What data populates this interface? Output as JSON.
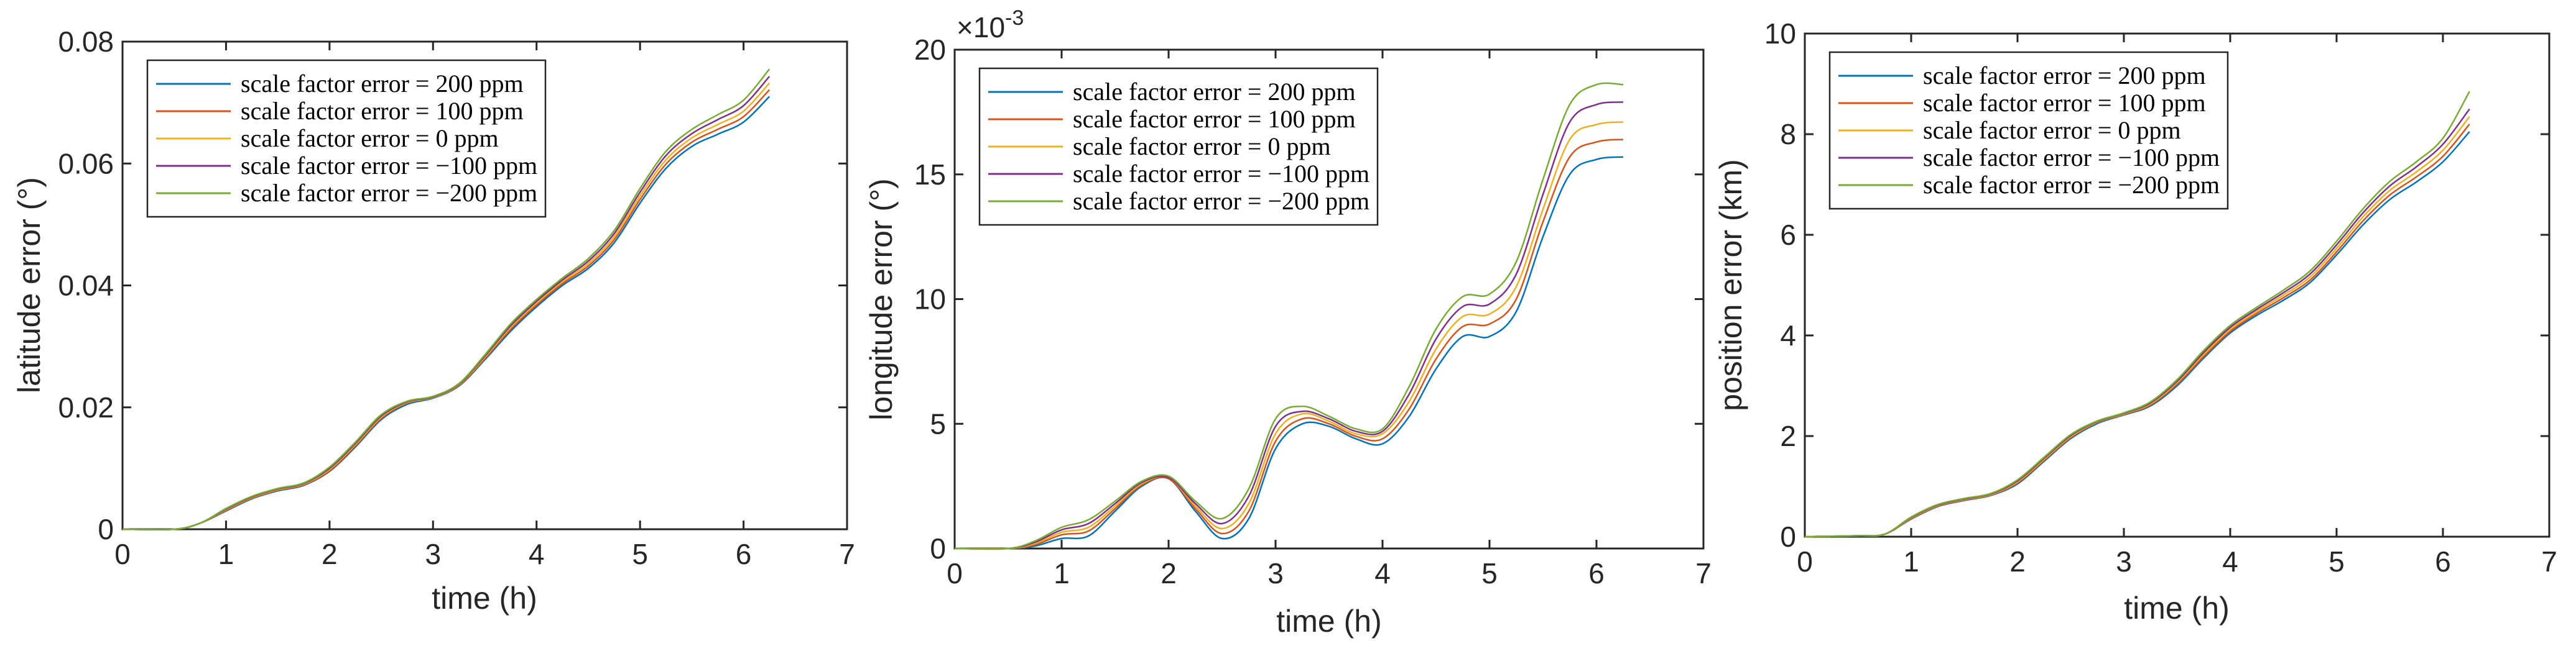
{
  "chart_data": [
    {
      "type": "line",
      "xlabel": "time (h)",
      "ylabel": "latitude error (°)",
      "xlim": [
        0,
        7
      ],
      "ylim": [
        0,
        0.08
      ],
      "xticks": [
        0,
        1,
        2,
        3,
        4,
        5,
        6,
        7
      ],
      "xtick_labels": [
        "0",
        "1",
        "2",
        "3",
        "4",
        "5",
        "6",
        "7"
      ],
      "yticks": [
        0,
        0.02,
        0.04,
        0.06,
        0.08
      ],
      "ytick_labels": [
        "0",
        "0.02",
        "0.04",
        "0.06",
        "0.08"
      ],
      "exponent_label": "",
      "legend_position": "top-left",
      "x": [
        0,
        0.5,
        0.75,
        1.0,
        1.25,
        1.5,
        1.75,
        2.0,
        2.25,
        2.5,
        2.75,
        3.0,
        3.25,
        3.5,
        3.75,
        4.0,
        4.25,
        4.5,
        4.75,
        5.0,
        5.25,
        5.5,
        5.75,
        6.0,
        6.25
      ],
      "series": [
        {
          "name": "scale factor error = 200 ppm",
          "color": "#0072BD",
          "values": [
            0,
            0,
            0.001,
            0.003,
            0.005,
            0.0063,
            0.0072,
            0.0095,
            0.0135,
            0.018,
            0.0205,
            0.0215,
            0.0235,
            0.0278,
            0.0325,
            0.0365,
            0.04,
            0.0428,
            0.047,
            0.0535,
            0.0592,
            0.0628,
            0.0648,
            0.0668,
            0.071
          ]
        },
        {
          "name": "scale factor error = 100 ppm",
          "color": "#D95319",
          "values": [
            0,
            0,
            0.001,
            0.0031,
            0.0051,
            0.0064,
            0.0073,
            0.0096,
            0.0137,
            0.0182,
            0.0207,
            0.0216,
            0.0236,
            0.028,
            0.0328,
            0.0368,
            0.0403,
            0.0432,
            0.0475,
            0.0541,
            0.0599,
            0.0635,
            0.0656,
            0.0677,
            0.0721
          ]
        },
        {
          "name": "scale factor error = 0 ppm",
          "color": "#EDB120",
          "values": [
            0,
            0,
            0.001,
            0.0032,
            0.0052,
            0.0065,
            0.0074,
            0.0098,
            0.0139,
            0.0184,
            0.0208,
            0.0216,
            0.0237,
            0.0282,
            0.0331,
            0.0371,
            0.0406,
            0.0436,
            0.048,
            0.0547,
            0.0606,
            0.0642,
            0.0664,
            0.0686,
            0.0732
          ]
        },
        {
          "name": "scale factor error = −100 ppm",
          "color": "#7E2F8E",
          "values": [
            0,
            0,
            0.001,
            0.0033,
            0.0053,
            0.0066,
            0.0075,
            0.01,
            0.0141,
            0.0186,
            0.0209,
            0.0217,
            0.0238,
            0.0284,
            0.0334,
            0.0374,
            0.0409,
            0.044,
            0.0485,
            0.0553,
            0.0613,
            0.0649,
            0.0672,
            0.0695,
            0.0743
          ]
        },
        {
          "name": "scale factor error = −200 ppm",
          "color": "#77AC30",
          "values": [
            0,
            0,
            0.001,
            0.0034,
            0.0054,
            0.0067,
            0.0076,
            0.0102,
            0.0143,
            0.0188,
            0.021,
            0.0218,
            0.0239,
            0.0286,
            0.0337,
            0.0377,
            0.0412,
            0.0444,
            0.049,
            0.0559,
            0.062,
            0.0656,
            0.068,
            0.0704,
            0.0755
          ]
        }
      ]
    },
    {
      "type": "line",
      "xlabel": "time (h)",
      "ylabel": "longitude error (°)",
      "xlim": [
        0,
        7
      ],
      "ylim": [
        0,
        20
      ],
      "xticks": [
        0,
        1,
        2,
        3,
        4,
        5,
        6,
        7
      ],
      "xtick_labels": [
        "0",
        "1",
        "2",
        "3",
        "4",
        "5",
        "6",
        "7"
      ],
      "yticks": [
        0,
        5,
        10,
        15,
        20
      ],
      "ytick_labels": [
        "0",
        "5",
        "10",
        "15",
        "20"
      ],
      "exponent_label": "×10",
      "exponent_power": "-3",
      "legend_position": "top-left",
      "x": [
        0,
        0.5,
        0.75,
        1.0,
        1.25,
        1.5,
        1.75,
        2.0,
        2.25,
        2.5,
        2.75,
        3.0,
        3.25,
        3.5,
        3.75,
        4.0,
        4.25,
        4.5,
        4.75,
        5.0,
        5.25,
        5.5,
        5.75,
        6.0,
        6.25
      ],
      "series": [
        {
          "name": "scale factor error = 200 ppm",
          "color": "#0072BD",
          "values": [
            0,
            0,
            0.1,
            0.4,
            0.5,
            1.5,
            2.5,
            2.8,
            1.5,
            0.4,
            1.2,
            4.0,
            5.0,
            4.9,
            4.4,
            4.2,
            5.3,
            7.2,
            8.5,
            8.5,
            9.5,
            12.5,
            15.0,
            15.6,
            15.7
          ]
        },
        {
          "name": "scale factor error = 100 ppm",
          "color": "#D95319",
          "values": [
            0,
            0,
            0.15,
            0.55,
            0.7,
            1.6,
            2.55,
            2.8,
            1.6,
            0.6,
            1.5,
            4.3,
            5.2,
            5.0,
            4.5,
            4.4,
            5.6,
            7.6,
            8.9,
            9.0,
            10.0,
            13.1,
            15.7,
            16.3,
            16.4
          ]
        },
        {
          "name": "scale factor error = 0 ppm",
          "color": "#EDB120",
          "values": [
            0,
            0,
            0.2,
            0.65,
            0.85,
            1.7,
            2.6,
            2.85,
            1.7,
            0.8,
            1.8,
            4.6,
            5.4,
            5.1,
            4.6,
            4.6,
            5.9,
            8.0,
            9.3,
            9.4,
            10.5,
            13.6,
            16.4,
            17.0,
            17.1
          ]
        },
        {
          "name": "scale factor error = −100 ppm",
          "color": "#7E2F8E",
          "values": [
            0,
            0,
            0.25,
            0.75,
            1.0,
            1.8,
            2.65,
            2.85,
            1.8,
            1.0,
            2.1,
            4.9,
            5.5,
            5.2,
            4.7,
            4.7,
            6.2,
            8.4,
            9.7,
            9.8,
            11.0,
            14.2,
            17.1,
            17.8,
            17.9
          ]
        },
        {
          "name": "scale factor error = −200 ppm",
          "color": "#77AC30",
          "values": [
            0,
            0,
            0.3,
            0.85,
            1.15,
            1.9,
            2.7,
            2.9,
            1.9,
            1.2,
            2.4,
            5.2,
            5.7,
            5.3,
            4.8,
            4.8,
            6.5,
            8.8,
            10.1,
            10.2,
            11.5,
            14.8,
            17.8,
            18.6,
            18.6
          ]
        }
      ]
    },
    {
      "type": "line",
      "xlabel": "time (h)",
      "ylabel": "position error (km)",
      "xlim": [
        0,
        7
      ],
      "ylim": [
        0,
        10
      ],
      "xticks": [
        0,
        1,
        2,
        3,
        4,
        5,
        6,
        7
      ],
      "xtick_labels": [
        "0",
        "1",
        "2",
        "3",
        "4",
        "5",
        "6",
        "7"
      ],
      "yticks": [
        0,
        2,
        4,
        6,
        8,
        10
      ],
      "ytick_labels": [
        "0",
        "2",
        "4",
        "6",
        "8",
        "10"
      ],
      "exponent_label": "",
      "legend_position": "top-left",
      "x": [
        0,
        0.5,
        0.75,
        1.0,
        1.25,
        1.5,
        1.75,
        2.0,
        2.25,
        2.5,
        2.75,
        3.0,
        3.25,
        3.5,
        3.75,
        4.0,
        4.25,
        4.5,
        4.75,
        5.0,
        5.25,
        5.5,
        5.75,
        6.0,
        6.25
      ],
      "series": [
        {
          "name": "scale factor error = 200 ppm",
          "color": "#0072BD",
          "values": [
            0,
            0.02,
            0.05,
            0.35,
            0.6,
            0.72,
            0.82,
            1.05,
            1.5,
            1.95,
            2.25,
            2.42,
            2.6,
            3.0,
            3.55,
            4.05,
            4.4,
            4.7,
            5.05,
            5.6,
            6.2,
            6.7,
            7.05,
            7.45,
            8.05
          ]
        },
        {
          "name": "scale factor error = 100 ppm",
          "color": "#D95319",
          "values": [
            0,
            0.02,
            0.05,
            0.36,
            0.61,
            0.73,
            0.83,
            1.07,
            1.52,
            1.97,
            2.27,
            2.43,
            2.62,
            3.03,
            3.58,
            4.08,
            4.44,
            4.75,
            5.1,
            5.66,
            6.28,
            6.79,
            7.15,
            7.56,
            8.2
          ]
        },
        {
          "name": "scale factor error = 0 ppm",
          "color": "#EDB120",
          "values": [
            0,
            0.02,
            0.05,
            0.37,
            0.62,
            0.74,
            0.84,
            1.09,
            1.54,
            1.99,
            2.28,
            2.44,
            2.64,
            3.06,
            3.62,
            4.12,
            4.48,
            4.8,
            5.16,
            5.73,
            6.36,
            6.88,
            7.25,
            7.68,
            8.35
          ]
        },
        {
          "name": "scale factor error = −100 ppm",
          "color": "#7E2F8E",
          "values": [
            0,
            0.02,
            0.05,
            0.38,
            0.63,
            0.75,
            0.85,
            1.11,
            1.56,
            2.01,
            2.29,
            2.45,
            2.66,
            3.09,
            3.66,
            4.16,
            4.52,
            4.85,
            5.22,
            5.8,
            6.44,
            6.97,
            7.35,
            7.8,
            8.5
          ]
        },
        {
          "name": "scale factor error = −200 ppm",
          "color": "#77AC30",
          "values": [
            0,
            0.02,
            0.05,
            0.39,
            0.64,
            0.76,
            0.86,
            1.13,
            1.58,
            2.03,
            2.3,
            2.46,
            2.68,
            3.12,
            3.7,
            4.2,
            4.56,
            4.9,
            5.28,
            5.87,
            6.52,
            7.06,
            7.45,
            7.92,
            8.85
          ]
        }
      ]
    }
  ]
}
